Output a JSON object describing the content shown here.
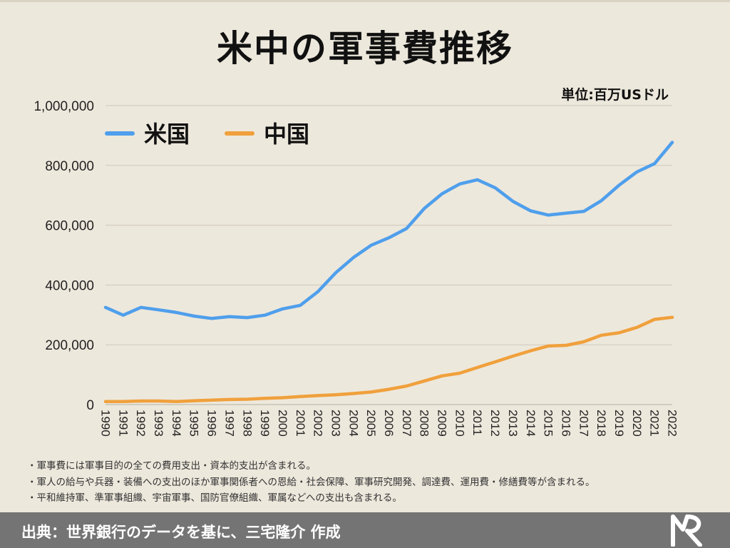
{
  "title": "米中の軍事費推移",
  "unit_label": "単位:百万USドル",
  "chart_data": {
    "type": "line",
    "title": "米中の軍事費推移",
    "xlabel": "",
    "ylabel": "",
    "ylim": [
      0,
      1000000
    ],
    "yticks": [
      0,
      200000,
      400000,
      600000,
      800000,
      1000000
    ],
    "ytick_labels": [
      "0",
      "200,000",
      "400,000",
      "600,000",
      "800,000",
      "1,000,000"
    ],
    "grid": true,
    "legend_placement": "top-left",
    "x": [
      "1990",
      "1991",
      "1992",
      "1993",
      "1994",
      "1995",
      "1996",
      "1997",
      "1998",
      "1999",
      "2000",
      "2001",
      "2002",
      "2003",
      "2004",
      "2005",
      "2006",
      "2007",
      "2008",
      "2009",
      "2010",
      "2011",
      "2012",
      "2013",
      "2014",
      "2015",
      "2016",
      "2017",
      "2018",
      "2019",
      "2020",
      "2021",
      "2022"
    ],
    "series": [
      {
        "name": "米国",
        "color": "#4f9fec",
        "values": [
          325000,
          299000,
          325000,
          317000,
          308000,
          296000,
          288000,
          294000,
          291000,
          299000,
          320000,
          332000,
          378000,
          441000,
          492000,
          533000,
          558000,
          589000,
          656000,
          705000,
          738000,
          752000,
          725000,
          680000,
          648000,
          634000,
          640000,
          646000,
          682000,
          734000,
          778000,
          806000,
          877000
        ]
      },
      {
        "name": "中国",
        "color": "#f0a03c",
        "values": [
          10000,
          10000,
          12000,
          12000,
          10000,
          13000,
          15000,
          17000,
          18000,
          21000,
          23000,
          27000,
          30000,
          33000,
          37000,
          42000,
          51000,
          62000,
          79000,
          96000,
          105000,
          124000,
          143000,
          162000,
          180000,
          196000,
          198000,
          210000,
          232000,
          240000,
          258000,
          285000,
          292000
        ]
      }
    ]
  },
  "notes": [
    "・軍事費には軍事目的の全ての費用支出・資本的支出が含まれる。",
    "・軍人の給与や兵器・装備への支出のほか軍事関係者への恩給・社会保障、軍事研究開発、調達費、運用費・修繕費等が含まれる。",
    "・平和維持軍、準軍事組織、宇宙軍事、国防官僚組織、軍属などへの支出も含まれる。"
  ],
  "footer": {
    "source": "出典：世界銀行のデータを基に、三宅隆介 作成",
    "logo_icon": "mr-logo-icon"
  }
}
